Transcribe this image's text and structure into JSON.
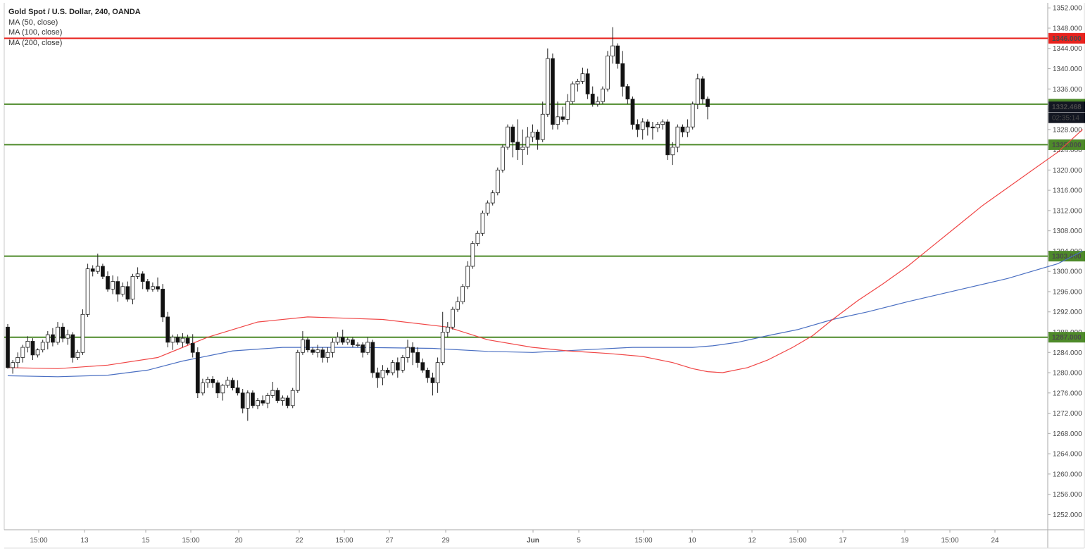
{
  "legend": {
    "title": "Gold Spot / U.S. Dollar, 240, OANDA",
    "indicators": [
      "MA (50, close)",
      "MA (100, close)",
      "MA (200, close)"
    ]
  },
  "colors": {
    "up_fill": "#ffffff",
    "down_fill": "#111111",
    "wick": "#222222",
    "ma50": "#f04545",
    "ma100": "#4a6fc2",
    "ma200": "#e8355f",
    "support": "#4e8a2a",
    "resistance": "#e8231e",
    "current_badge": "#131722",
    "axis_text": "#4a4a4a"
  },
  "chart_data": {
    "type": "candlestick",
    "title": "Gold Spot / U.S. Dollar, 240, OANDA",
    "ylim": [
      1249,
      1353
    ],
    "y_ticks": [
      1252,
      1256,
      1260,
      1264,
      1268,
      1272,
      1276,
      1280,
      1284,
      1288,
      1292,
      1296,
      1300,
      1304,
      1308,
      1312,
      1316,
      1320,
      1324,
      1328,
      1332,
      1336,
      1340,
      1344,
      1348,
      1352
    ],
    "x_ticks": [
      "15:00",
      "13",
      "15",
      "15:00",
      "20",
      "22",
      "15:00",
      "27",
      "29",
      "Jun",
      "5",
      "15:00",
      "10",
      "12",
      "15:00",
      "17",
      "19",
      "15:00",
      "24"
    ],
    "horizontal_levels": [
      {
        "label": "1346.000",
        "value": 1346,
        "kind": "resistance"
      },
      {
        "label": "1333.000",
        "value": 1333,
        "kind": "support"
      },
      {
        "label": "1325.000",
        "value": 1325,
        "kind": "support"
      },
      {
        "label": "1303.000",
        "value": 1303,
        "kind": "support"
      },
      {
        "label": "1287.000",
        "value": 1287,
        "kind": "support"
      }
    ],
    "current_price": "1332.468",
    "countdown": "02:35:14",
    "candles": [
      [
        1289,
        1289.6,
        1280.8,
        1281
      ],
      [
        1281,
        1282.5,
        1279.8,
        1282
      ],
      [
        1282,
        1284,
        1281,
        1283
      ],
      [
        1283,
        1285.5,
        1282,
        1285
      ],
      [
        1285,
        1287.2,
        1284,
        1286.2
      ],
      [
        1286.2,
        1286.8,
        1282.5,
        1283.5
      ],
      [
        1283.5,
        1284.8,
        1283,
        1284.5
      ],
      [
        1284.5,
        1286.5,
        1284,
        1286
      ],
      [
        1286,
        1288.2,
        1284.6,
        1287.5
      ],
      [
        1287.5,
        1288.8,
        1285.2,
        1286
      ],
      [
        1286,
        1290,
        1285.5,
        1289
      ],
      [
        1289,
        1289.8,
        1286,
        1286.8
      ],
      [
        1286.8,
        1288.5,
        1285.5,
        1287.5
      ],
      [
        1287.5,
        1288,
        1282,
        1283
      ],
      [
        1283,
        1284.5,
        1282.5,
        1284
      ],
      [
        1284,
        1292.5,
        1283.5,
        1291.5
      ],
      [
        1291.5,
        1301.5,
        1291,
        1300.5
      ],
      [
        1300.5,
        1301.2,
        1299,
        1300
      ],
      [
        1300,
        1303.5,
        1299.5,
        1301
      ],
      [
        1301,
        1301.5,
        1298.5,
        1299
      ],
      [
        1299,
        1300,
        1296,
        1296.5
      ],
      [
        1296.5,
        1299.2,
        1295.5,
        1298
      ],
      [
        1298,
        1299,
        1294,
        1295.5
      ],
      [
        1295.5,
        1297.8,
        1295,
        1297
      ],
      [
        1297,
        1298,
        1294,
        1294.5
      ],
      [
        1294.5,
        1299.5,
        1293.5,
        1299
      ],
      [
        1299,
        1300.8,
        1298.5,
        1299.5
      ],
      [
        1299.5,
        1300,
        1296.5,
        1298
      ],
      [
        1298,
        1298.5,
        1296,
        1296.5
      ],
      [
        1296.5,
        1297.8,
        1296,
        1297
      ],
      [
        1297,
        1298.8,
        1296,
        1296.5
      ],
      [
        1296.5,
        1297.5,
        1290,
        1291
      ],
      [
        1291,
        1292,
        1285,
        1286
      ],
      [
        1286,
        1287.5,
        1284.5,
        1287
      ],
      [
        1287,
        1287.6,
        1285.5,
        1286
      ],
      [
        1286,
        1287.8,
        1285,
        1286.8
      ],
      [
        1286.8,
        1287.5,
        1285.5,
        1285.8
      ],
      [
        1285.8,
        1287.6,
        1283,
        1284
      ],
      [
        1284,
        1285,
        1275,
        1276
      ],
      [
        1276,
        1278.8,
        1275.5,
        1278
      ],
      [
        1278,
        1279.2,
        1277,
        1278.7
      ],
      [
        1278.7,
        1279.3,
        1277,
        1278
      ],
      [
        1278,
        1278.5,
        1275,
        1276
      ],
      [
        1276,
        1277.8,
        1274.5,
        1277.5
      ],
      [
        1277.5,
        1279.2,
        1277,
        1278.5
      ],
      [
        1278.5,
        1279,
        1276.5,
        1277
      ],
      [
        1277,
        1278.5,
        1275.5,
        1276
      ],
      [
        1276,
        1276.8,
        1272,
        1273
      ],
      [
        1273,
        1276.5,
        1270.5,
        1276
      ],
      [
        1276,
        1276.5,
        1273,
        1273.5
      ],
      [
        1273.5,
        1275,
        1272.8,
        1274.5
      ],
      [
        1274.5,
        1275.5,
        1273.5,
        1274
      ],
      [
        1274,
        1276,
        1273,
        1275.5
      ],
      [
        1275.5,
        1278.2,
        1275,
        1276.5
      ],
      [
        1276.5,
        1277,
        1274,
        1274.5
      ],
      [
        1274.5,
        1275.5,
        1273.5,
        1275
      ],
      [
        1275,
        1275.5,
        1273,
        1273.5
      ],
      [
        1273.5,
        1277,
        1273,
        1276.5
      ],
      [
        1276.5,
        1284.5,
        1276,
        1284
      ],
      [
        1284,
        1288.2,
        1283.5,
        1286.5
      ],
      [
        1286.5,
        1287,
        1284,
        1284.5
      ],
      [
        1284.5,
        1285,
        1283.5,
        1284
      ],
      [
        1284,
        1285.5,
        1283,
        1284.5
      ],
      [
        1284.5,
        1285,
        1282,
        1283
      ],
      [
        1283,
        1285,
        1282,
        1284
      ],
      [
        1284,
        1286.8,
        1283,
        1286
      ],
      [
        1286,
        1288,
        1285.5,
        1287
      ],
      [
        1287,
        1288.5,
        1285.5,
        1286
      ],
      [
        1286,
        1287,
        1285.5,
        1286.5
      ],
      [
        1286.5,
        1287,
        1285,
        1285.5
      ],
      [
        1285.5,
        1286,
        1285,
        1285.5
      ],
      [
        1285.5,
        1286,
        1283,
        1284
      ],
      [
        1284,
        1287,
        1283.5,
        1286
      ],
      [
        1286,
        1286.5,
        1279,
        1280
      ],
      [
        1280,
        1281,
        1277,
        1279
      ],
      [
        1279,
        1281.5,
        1277.5,
        1280.5
      ],
      [
        1280.5,
        1281,
        1279.5,
        1280
      ],
      [
        1280,
        1282.5,
        1279.5,
        1282
      ],
      [
        1282,
        1283,
        1279,
        1280.5
      ],
      [
        1280.5,
        1283.5,
        1280,
        1283
      ],
      [
        1283,
        1286.5,
        1282,
        1285
      ],
      [
        1285,
        1286,
        1281.5,
        1284
      ],
      [
        1284,
        1285,
        1281,
        1282
      ],
      [
        1282,
        1282.8,
        1280,
        1280.5
      ],
      [
        1280.5,
        1281,
        1278,
        1279
      ],
      [
        1279,
        1280,
        1275.5,
        1278
      ],
      [
        1278,
        1283,
        1276,
        1282
      ],
      [
        1282,
        1292,
        1281.5,
        1288
      ],
      [
        1288,
        1290,
        1287,
        1289
      ],
      [
        1289,
        1293,
        1288.5,
        1292.5
      ],
      [
        1292.5,
        1295,
        1292,
        1294
      ],
      [
        1294,
        1297.5,
        1293.5,
        1297
      ],
      [
        1297,
        1302,
        1296.5,
        1301
      ],
      [
        1301,
        1306,
        1300.5,
        1305.5
      ],
      [
        1305.5,
        1308,
        1305,
        1307.5
      ],
      [
        1307.5,
        1312,
        1307,
        1311.5
      ],
      [
        1311.5,
        1314,
        1311,
        1313.5
      ],
      [
        1313.5,
        1316,
        1313,
        1315.5
      ],
      [
        1315.5,
        1320.5,
        1315,
        1320
      ],
      [
        1320,
        1325,
        1319.5,
        1324.5
      ],
      [
        1324.5,
        1329,
        1324,
        1328.5
      ],
      [
        1328.5,
        1329,
        1322.5,
        1325.5
      ],
      [
        1325.5,
        1330,
        1322,
        1324
      ],
      [
        1324,
        1328,
        1321,
        1324.5
      ],
      [
        1324.5,
        1328.5,
        1323,
        1326.5
      ],
      [
        1326.5,
        1329,
        1325.5,
        1327.5
      ],
      [
        1327.5,
        1328,
        1324,
        1326
      ],
      [
        1326,
        1333.5,
        1325.5,
        1331
      ],
      [
        1331,
        1344,
        1330.5,
        1342
      ],
      [
        1342,
        1343,
        1328,
        1329
      ],
      [
        1329,
        1333.5,
        1328,
        1330.5
      ],
      [
        1330.5,
        1332.5,
        1329.5,
        1330
      ],
      [
        1330,
        1335,
        1329,
        1333.5
      ],
      [
        1333.5,
        1337.5,
        1333,
        1337
      ],
      [
        1337,
        1338,
        1335.5,
        1337.5
      ],
      [
        1337.5,
        1340.2,
        1337,
        1339
      ],
      [
        1339,
        1340,
        1334,
        1335
      ],
      [
        1335,
        1336.5,
        1332.5,
        1333
      ],
      [
        1333,
        1334.5,
        1332.5,
        1333.5
      ],
      [
        1333.5,
        1336.5,
        1333,
        1336
      ],
      [
        1336,
        1343.5,
        1335.5,
        1342.5
      ],
      [
        1342.5,
        1348.2,
        1341,
        1344.5
      ],
      [
        1344.5,
        1345,
        1340,
        1341
      ],
      [
        1341,
        1343.5,
        1334.5,
        1336.5
      ],
      [
        1336.5,
        1337,
        1333,
        1334
      ],
      [
        1334,
        1334.5,
        1328,
        1329
      ],
      [
        1329,
        1330,
        1326.5,
        1328
      ],
      [
        1328,
        1330.2,
        1326,
        1329.5
      ],
      [
        1329.5,
        1330,
        1326.8,
        1328.5
      ],
      [
        1328.5,
        1329.5,
        1326,
        1328.3
      ],
      [
        1328.3,
        1329.5,
        1327.5,
        1329
      ],
      [
        1329,
        1330,
        1328,
        1329.5
      ],
      [
        1329.5,
        1330,
        1322,
        1323
      ],
      [
        1323,
        1325.5,
        1321,
        1324.5
      ],
      [
        1324.5,
        1329,
        1323.5,
        1328.5
      ],
      [
        1328.5,
        1329,
        1326.5,
        1327.5
      ],
      [
        1327.5,
        1330,
        1326.5,
        1328.5
      ],
      [
        1328.5,
        1333.5,
        1328,
        1333
      ],
      [
        1333,
        1339,
        1332,
        1338
      ],
      [
        1338,
        1338.5,
        1333,
        1334
      ],
      [
        1334,
        1334.5,
        1330,
        1332.5
      ]
    ],
    "ma50": [
      [
        0,
        1281
      ],
      [
        10,
        1280.8
      ],
      [
        20,
        1281.5
      ],
      [
        30,
        1283
      ],
      [
        40,
        1287
      ],
      [
        50,
        1290
      ],
      [
        60,
        1291
      ],
      [
        75,
        1290.5
      ],
      [
        88,
        1289
      ],
      [
        96,
        1286.5
      ],
      [
        105,
        1285
      ],
      [
        112,
        1284.3
      ],
      [
        120,
        1283.8
      ],
      [
        127,
        1283.2
      ],
      [
        133,
        1282
      ],
      [
        137,
        1280.8
      ],
      [
        140,
        1280.2
      ],
      [
        143,
        1280
      ],
      [
        148,
        1281
      ],
      [
        152,
        1282.5
      ],
      [
        157,
        1285
      ],
      [
        161,
        1287.3
      ],
      [
        165,
        1290.5
      ],
      [
        170,
        1294.2
      ],
      [
        175,
        1297.5
      ],
      [
        180,
        1301
      ],
      [
        185,
        1305
      ],
      [
        190,
        1309
      ],
      [
        195,
        1313
      ],
      [
        200,
        1316.5
      ],
      [
        205,
        1320
      ],
      [
        210,
        1323.5
      ],
      [
        215,
        1328
      ]
    ],
    "ma100": [
      [
        0,
        1279.4
      ],
      [
        10,
        1279.2
      ],
      [
        20,
        1279.5
      ],
      [
        28,
        1280.5
      ],
      [
        35,
        1282.3
      ],
      [
        45,
        1284.3
      ],
      [
        55,
        1285
      ],
      [
        70,
        1285
      ],
      [
        85,
        1284.8
      ],
      [
        96,
        1284.2
      ],
      [
        105,
        1284
      ],
      [
        115,
        1284.5
      ],
      [
        125,
        1285
      ],
      [
        133,
        1285
      ],
      [
        137,
        1285
      ],
      [
        141,
        1285.3
      ],
      [
        146,
        1286
      ],
      [
        152,
        1287.3
      ],
      [
        158,
        1288.5
      ],
      [
        165,
        1290.5
      ],
      [
        172,
        1292
      ],
      [
        180,
        1294
      ],
      [
        190,
        1296.3
      ],
      [
        200,
        1298.6
      ],
      [
        210,
        1301.5
      ],
      [
        215,
        1304
      ]
    ]
  }
}
